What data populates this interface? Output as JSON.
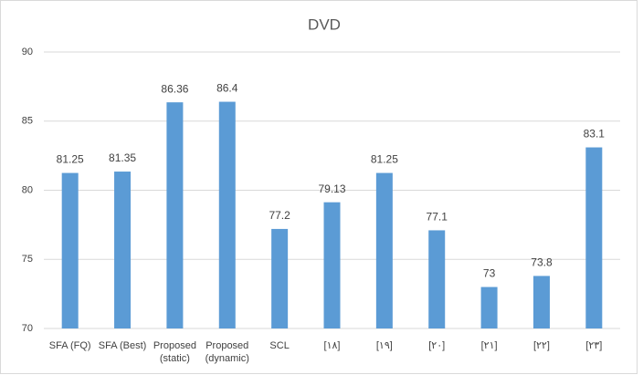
{
  "chart_data": {
    "type": "bar",
    "title": "DVD",
    "categories": [
      "SFA (FQ)",
      "SFA (Best)",
      "Proposed (static)",
      "Proposed (dynamic)",
      "SCL",
      "[۱۸]",
      "[۱۹]",
      "[۲۰]",
      "[۲۱]",
      "[۲۲]",
      "[۲۳]"
    ],
    "values": [
      81.25,
      81.35,
      86.36,
      86.4,
      77.2,
      79.13,
      81.25,
      77.1,
      73,
      73.8,
      83.1
    ],
    "color": "#5b9bd5",
    "ylim": [
      70,
      90
    ],
    "yticks": [
      70,
      75,
      80,
      85,
      90
    ],
    "grid": true
  }
}
